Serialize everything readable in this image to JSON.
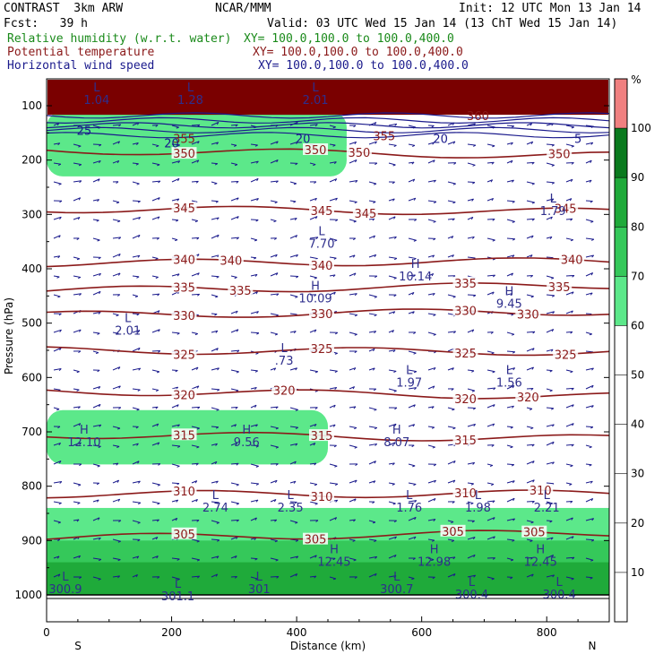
{
  "header": {
    "model": "CONTRAST  3km ARW",
    "forecast": "Fcst:   39 h",
    "center": "NCAR/MMM",
    "init": "Init: 12 UTC Mon 13 Jan 14",
    "valid": "Valid: 03 UTC Wed 15 Jan 14 (13 ChT Wed 15 Jan 14)",
    "fields": [
      {
        "name": "Relative humidity (w.r.t. water)",
        "xy": "XY= 100.0,100.0 to 100.0,400.0",
        "color": "#1a8a1a"
      },
      {
        "name": "Potential temperature",
        "xy": "XY= 100.0,100.0 to 100.0,400.0",
        "color": "#8b1a1a"
      },
      {
        "name": "Horizontal wind speed",
        "xy": "XY= 100.0,100.0 to 100.0,400.0",
        "color": "#1a1a8c"
      }
    ]
  },
  "chart_data": {
    "type": "cross-section",
    "xlabel": "Distance (km)",
    "ylabel": "Pressure (hPa)",
    "xlim": [
      0,
      900
    ],
    "ylim": [
      1000,
      50
    ],
    "x_ticks": [
      "0",
      "200",
      "400",
      "600",
      "800"
    ],
    "y_ticks": [
      "100",
      "200",
      "300",
      "400",
      "500",
      "600",
      "700",
      "800",
      "900",
      "1000"
    ],
    "x_end_labels": {
      "left": "S",
      "right": "N"
    },
    "colorbar": {
      "unit": "%",
      "ticks": [
        "10",
        "20",
        "30",
        "40",
        "50",
        "60",
        "70",
        "80",
        "90",
        "100"
      ],
      "colors": [
        "#ffffff",
        "#ffffff",
        "#ffffff",
        "#ffffff",
        "#ffffff",
        "#5ce88a",
        "#35c85a",
        "#1faa3a",
        "#0a7a1e",
        "#f08080"
      ]
    },
    "rh_bands": [
      {
        "p": [
          110,
          230
        ],
        "x": [
          0,
          480
        ],
        "level": 60
      },
      {
        "p": [
          140,
          190
        ],
        "x": [
          480,
          800
        ],
        "level": 50
      },
      {
        "p": [
          620,
          790
        ],
        "x": [
          0,
          790
        ],
        "level": 50
      },
      {
        "p": [
          660,
          760
        ],
        "x": [
          0,
          450
        ],
        "level": 60
      },
      {
        "p": [
          840,
          1000
        ],
        "x": [
          0,
          900
        ],
        "level": 60
      },
      {
        "p": [
          900,
          1000
        ],
        "x": [
          0,
          900
        ],
        "level": 70
      },
      {
        "p": [
          940,
          1000
        ],
        "x": [
          0,
          900
        ],
        "level": 80
      }
    ],
    "theta_isolines": [
      {
        "value": 350,
        "p": 182,
        "labels": [
          "350",
          "350",
          "350",
          "350"
        ],
        "label_x": [
          220,
          430,
          500,
          820
        ]
      },
      {
        "value": 345,
        "p": 290,
        "labels": [
          "345",
          "345",
          "345",
          "345"
        ],
        "label_x": [
          220,
          440,
          510,
          830
        ]
      },
      {
        "value": 340,
        "p": 390,
        "labels": [
          "340",
          "340",
          "340",
          "340"
        ],
        "label_x": [
          220,
          295,
          440,
          840
        ]
      },
      {
        "value": 335,
        "p": 440,
        "labels": [
          "335",
          "335",
          "335",
          "335"
        ],
        "label_x": [
          220,
          310,
          670,
          820
        ]
      },
      {
        "value": 330,
        "p": 485,
        "labels": [
          "330",
          "330",
          "330",
          "330"
        ],
        "label_x": [
          220,
          440,
          670,
          770
        ]
      },
      {
        "value": 325,
        "p": 550,
        "labels": [
          "325",
          "325",
          "325",
          "325"
        ],
        "label_x": [
          220,
          440,
          670,
          830
        ]
      },
      {
        "value": 320,
        "p": 625,
        "labels": [
          "320",
          "320",
          "320",
          "320"
        ],
        "label_x": [
          220,
          380,
          670,
          770
        ]
      },
      {
        "value": 315,
        "p": 705,
        "labels": [
          "315",
          "315",
          "315"
        ],
        "label_x": [
          220,
          440,
          670
        ]
      },
      {
        "value": 310,
        "p": 815,
        "labels": [
          "310",
          "310",
          "310",
          "310"
        ],
        "label_x": [
          220,
          440,
          670,
          790
        ]
      },
      {
        "value": 305,
        "p": 895,
        "labels": [
          "305",
          "305",
          "305",
          "305"
        ],
        "label_x": [
          220,
          430,
          650,
          780
        ]
      }
    ],
    "extrema": [
      {
        "type": "L",
        "value": "1.04",
        "x": 80,
        "p": 80
      },
      {
        "type": "L",
        "value": "1.28",
        "x": 230,
        "p": 80
      },
      {
        "type": "L",
        "value": "2.01",
        "x": 430,
        "p": 80
      },
      {
        "type": "L",
        "value": "7.70",
        "x": 440,
        "p": 345
      },
      {
        "type": "H",
        "value": "10.09",
        "x": 430,
        "p": 445
      },
      {
        "type": "H",
        "value": "10.14",
        "x": 590,
        "p": 405
      },
      {
        "type": "H",
        "value": "9.45",
        "x": 740,
        "p": 455
      },
      {
        "type": "L",
        "value": "1.79",
        "x": 810,
        "p": 285
      },
      {
        "type": "L",
        "value": "2.01",
        "x": 130,
        "p": 505
      },
      {
        "type": "L",
        "value": ".73",
        "x": 380,
        "p": 560
      },
      {
        "type": "L",
        "value": "1.97",
        "x": 580,
        "p": 600
      },
      {
        "type": "L",
        "value": "1.56",
        "x": 740,
        "p": 600
      },
      {
        "type": "H",
        "value": "12.10",
        "x": 60,
        "p": 710
      },
      {
        "type": "H",
        "value": "9.56",
        "x": 320,
        "p": 710
      },
      {
        "type": "H",
        "value": "8.07",
        "x": 560,
        "p": 710
      },
      {
        "type": "L",
        "value": "2.74",
        "x": 270,
        "p": 830
      },
      {
        "type": "L",
        "value": "2.35",
        "x": 390,
        "p": 830
      },
      {
        "type": "L",
        "value": "1.76",
        "x": 580,
        "p": 830
      },
      {
        "type": "L",
        "value": "1.98",
        "x": 690,
        "p": 830
      },
      {
        "type": "L",
        "value": "2.21",
        "x": 800,
        "p": 830
      },
      {
        "type": "H",
        "value": "12.45",
        "x": 460,
        "p": 930
      },
      {
        "type": "H",
        "value": "12.98",
        "x": 620,
        "p": 930
      },
      {
        "type": "H",
        "value": "12.45",
        "x": 790,
        "p": 930
      },
      {
        "type": "L",
        "value": "300.9",
        "x": 30,
        "p": 980
      },
      {
        "type": "L",
        "value": "301.1",
        "x": 210,
        "p": 1000
      },
      {
        "type": "L",
        "value": "301",
        "x": 340,
        "p": 980
      },
      {
        "type": "L",
        "value": "300.7",
        "x": 560,
        "p": 980
      },
      {
        "type": "L",
        "value": "300.4",
        "x": 680,
        "p": 990
      },
      {
        "type": "L",
        "value": "300.4",
        "x": 820,
        "p": 990
      }
    ],
    "upper_labels": [
      {
        "text": "355",
        "x": 220,
        "p": 160
      },
      {
        "text": "355",
        "x": 540,
        "p": 155
      },
      {
        "text": "25",
        "x": 60,
        "p": 145
      },
      {
        "text": "20",
        "x": 200,
        "p": 168
      },
      {
        "text": "20",
        "x": 410,
        "p": 160
      },
      {
        "text": "20",
        "x": 630,
        "p": 160
      },
      {
        "text": "360",
        "x": 690,
        "p": 118
      },
      {
        "text": "5",
        "x": 850,
        "p": 160
      }
    ]
  }
}
